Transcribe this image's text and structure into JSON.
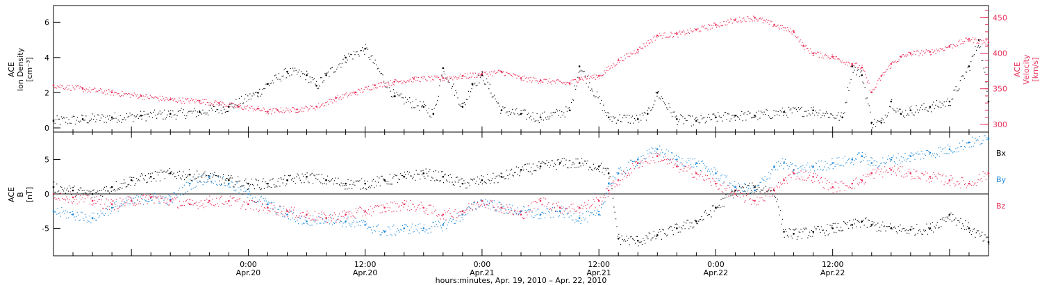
{
  "colors": {
    "density": "#000000",
    "velocity": "#e8305a",
    "bx": "#000000",
    "by": "#1e88d8",
    "bz": "#e8305a"
  },
  "figure": {
    "xlabel": "hours:minutes, Apr. 19, 2010 – Apr. 22, 2010"
  },
  "chart_data": [
    {
      "type": "scatter",
      "title": "",
      "ylabel_lines": [
        "ACE",
        "Ion Density",
        "[cm⁻³]"
      ],
      "y2label_lines": [
        "ACE",
        "Velocity",
        "[km/s]"
      ],
      "x_range_hours": [
        -20,
        76
      ],
      "ylim": [
        0,
        6.8
      ],
      "yticks": [
        0,
        2,
        4,
        6
      ],
      "y2lim": [
        295,
        465
      ],
      "y2ticks": [
        300,
        350,
        400,
        450
      ],
      "grid": false,
      "series": [
        {
          "name": "",
          "axis": "left",
          "key": "density",
          "x": [
            -20,
            -17,
            -14,
            -11,
            -8,
            -5,
            -2,
            1,
            2,
            4,
            6,
            7,
            8,
            10,
            12,
            15,
            18,
            19,
            20,
            22,
            23,
            24,
            26,
            28,
            30,
            33,
            34,
            37,
            40,
            41,
            42,
            44,
            46,
            48,
            50,
            52,
            55,
            58,
            61,
            62,
            63,
            64,
            65,
            66,
            67,
            68,
            70,
            72,
            74,
            75,
            76
          ],
          "y": [
            0.4,
            0.5,
            0.6,
            0.7,
            0.8,
            0.9,
            1.2,
            2.0,
            2.5,
            3.2,
            3.0,
            2.4,
            3.0,
            4.0,
            4.5,
            1.8,
            1.2,
            0.8,
            3.4,
            1.2,
            2.5,
            3.0,
            1.0,
            0.8,
            0.6,
            1.0,
            3.5,
            0.6,
            0.5,
            0.8,
            2.0,
            0.5,
            0.4,
            0.6,
            0.7,
            0.7,
            0.9,
            1.0,
            0.6,
            3.5,
            3.0,
            0.3,
            0.3,
            1.5,
            0.8,
            1.0,
            1.2,
            1.5,
            3.5,
            5.0,
            1.5
          ]
        },
        {
          "name": "",
          "axis": "right",
          "key": "velocity",
          "x": [
            -20,
            -17,
            -14,
            -11,
            -8,
            -5,
            -3,
            -1,
            1,
            2,
            3,
            5,
            7,
            9,
            11,
            13,
            15,
            17,
            20,
            22,
            24,
            26,
            28,
            30,
            33,
            34,
            36,
            38,
            40,
            42,
            44,
            46,
            48,
            50,
            52,
            54,
            56,
            57,
            58,
            60,
            62,
            63,
            64,
            65,
            66,
            67,
            68,
            70,
            72,
            74,
            76
          ],
          "y": [
            355,
            350,
            345,
            340,
            335,
            333,
            330,
            325,
            322,
            318,
            320,
            321,
            325,
            337,
            345,
            355,
            360,
            364,
            365,
            368,
            371,
            374,
            365,
            362,
            358,
            365,
            368,
            390,
            405,
            425,
            427,
            433,
            440,
            447,
            450,
            440,
            430,
            410,
            400,
            395,
            385,
            380,
            345,
            368,
            385,
            395,
            400,
            402,
            410,
            420,
            415
          ]
        }
      ]
    },
    {
      "type": "scatter",
      "title": "",
      "ylabel_lines": [
        "ACE",
        "B",
        "[nT]"
      ],
      "x_range_hours": [
        -20,
        76
      ],
      "xticks": [
        {
          "h": 0,
          "time": "0:00",
          "date": "Apr.20"
        },
        {
          "h": 12,
          "time": "12:00",
          "date": "Apr.20"
        },
        {
          "h": 24,
          "time": "0:00",
          "date": "Apr.21"
        },
        {
          "h": 36,
          "time": "12:00",
          "date": "Apr.21"
        },
        {
          "h": 48,
          "time": "0:00",
          "date": "Apr.22"
        },
        {
          "h": 60,
          "time": "12:00",
          "date": "Apr.22"
        }
      ],
      "ylim": [
        -9,
        9
      ],
      "yticks": [
        -5,
        0,
        5
      ],
      "grid": false,
      "legend_position": "right",
      "series": [
        {
          "name": "Bx",
          "key": "bx",
          "x": [
            -20,
            -18,
            -16,
            -14,
            -12,
            -10,
            -8,
            -6,
            -4,
            -2,
            0,
            2,
            4,
            6,
            8,
            10,
            12,
            14,
            16,
            18,
            20,
            22,
            24,
            26,
            28,
            30,
            32,
            34,
            36,
            37,
            38,
            40,
            42,
            44,
            46,
            48,
            50,
            52,
            54,
            55,
            56,
            58,
            60,
            62,
            63,
            64,
            66,
            68,
            70,
            72,
            74,
            76
          ],
          "y": [
            1.0,
            0.5,
            0.0,
            1.0,
            2.0,
            2.5,
            3.0,
            2.8,
            2.5,
            2.0,
            1.5,
            1.5,
            2.0,
            2.5,
            2.0,
            1.5,
            1.5,
            2.0,
            2.5,
            3.0,
            2.5,
            1.5,
            2.0,
            2.5,
            3.5,
            4.0,
            4.5,
            4.5,
            4.0,
            3.0,
            -6.5,
            -6.8,
            -6.0,
            -5.0,
            -4.0,
            -2.0,
            0.5,
            1.0,
            0.5,
            -5.5,
            -5.8,
            -5.5,
            -5.0,
            -4.5,
            -4.0,
            -4.5,
            -5.0,
            -5.2,
            -5.0,
            -3.0,
            -5.0,
            -7.0
          ]
        },
        {
          "name": "By",
          "key": "by",
          "x": [
            -20,
            -18,
            -16,
            -14,
            -12,
            -10,
            -8,
            -6,
            -4,
            -2,
            0,
            2,
            4,
            6,
            8,
            10,
            12,
            14,
            16,
            18,
            20,
            22,
            24,
            26,
            28,
            30,
            32,
            34,
            36,
            37,
            38,
            40,
            42,
            44,
            46,
            48,
            50,
            52,
            54,
            55,
            56,
            58,
            60,
            62,
            63,
            64,
            66,
            68,
            70,
            72,
            74,
            76
          ],
          "y": [
            -2.5,
            -3.0,
            -3.5,
            -2.0,
            -1.0,
            -0.5,
            -0.8,
            1.5,
            2.5,
            1.5,
            0.0,
            -1.5,
            -3.0,
            -4.0,
            -3.5,
            -4.0,
            -4.5,
            -5.5,
            -5.0,
            -5.0,
            -4.5,
            -3.0,
            -1.0,
            -2.0,
            -2.5,
            -3.0,
            -2.5,
            -3.5,
            -3.0,
            1.5,
            3.0,
            5.0,
            6.5,
            5.0,
            4.5,
            3.0,
            1.0,
            0.5,
            4.0,
            4.5,
            3.5,
            4.0,
            4.5,
            5.0,
            5.5,
            4.5,
            5.0,
            5.5,
            6.0,
            6.5,
            7.5,
            8.0
          ]
        },
        {
          "name": "Bz",
          "key": "bz",
          "x": [
            -20,
            -18,
            -16,
            -14,
            -12,
            -10,
            -8,
            -6,
            -4,
            -2,
            0,
            2,
            4,
            6,
            8,
            10,
            12,
            14,
            16,
            18,
            20,
            22,
            24,
            26,
            28,
            30,
            32,
            34,
            36,
            37,
            38,
            40,
            42,
            44,
            46,
            48,
            50,
            52,
            54,
            55,
            56,
            58,
            60,
            62,
            63,
            64,
            66,
            68,
            70,
            72,
            74,
            76
          ],
          "y": [
            0.0,
            -0.5,
            -1.0,
            -1.5,
            -1.0,
            -0.5,
            -1.0,
            -1.5,
            -1.0,
            -1.0,
            -1.5,
            -2.0,
            -2.5,
            -3.0,
            -3.5,
            -3.0,
            -2.5,
            -2.0,
            -1.5,
            -2.0,
            -3.0,
            -2.5,
            -1.0,
            -2.0,
            -3.0,
            -1.0,
            -2.0,
            -2.0,
            -1.0,
            0.5,
            2.0,
            4.5,
            5.5,
            4.0,
            3.0,
            1.5,
            0.0,
            -1.0,
            0.5,
            2.0,
            3.0,
            2.5,
            1.0,
            1.5,
            2.0,
            3.0,
            3.5,
            3.0,
            2.5,
            2.0,
            1.5,
            3.0
          ]
        }
      ]
    }
  ]
}
